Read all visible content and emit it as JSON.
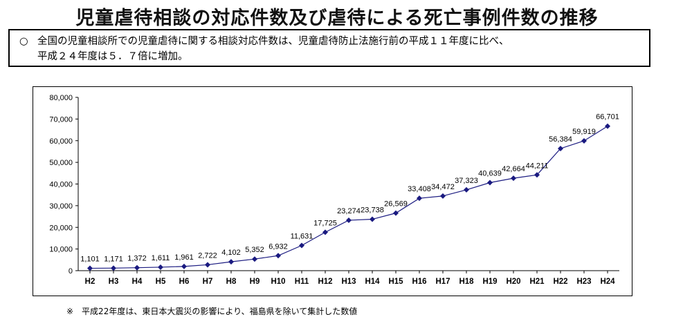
{
  "title": "児童虐待相談の対応件数及び虐待による死亡事例件数の推移",
  "summary": {
    "bullet": "○",
    "line1": "全国の児童相談所での児童虐待に関する相談対応件数は、児童虐待防止法施行前の平成１１年度に比べ、",
    "line2": "平成２４年度は５．７倍に増加。"
  },
  "footnote": "※　平成22年度は、東日本大震災の影響により、福島県を除いて集計した数値",
  "colors": {
    "series": "#1a1a80"
  },
  "chart_data": {
    "type": "line",
    "categories": [
      "H2",
      "H3",
      "H4",
      "H5",
      "H6",
      "H7",
      "H8",
      "H9",
      "H10",
      "H11",
      "H12",
      "H13",
      "H14",
      "H15",
      "H16",
      "H17",
      "H18",
      "H19",
      "H20",
      "H21",
      "H22",
      "H23",
      "H24"
    ],
    "values": [
      1101,
      1171,
      1372,
      1611,
      1961,
      2722,
      4102,
      5352,
      6932,
      11631,
      17725,
      23274,
      23738,
      26569,
      33408,
      34472,
      37323,
      40639,
      42664,
      44211,
      56384,
      59919,
      66701
    ],
    "data_labels": [
      "1,101",
      "1,171",
      "1,372",
      "1,611",
      "1,961",
      "2,722",
      "4,102",
      "5,352",
      "6,932",
      "11,631",
      "17,725",
      "23,274",
      "23,738",
      "26,569",
      "33,408",
      "34,472",
      "37,323",
      "40,639",
      "42,664",
      "44,211",
      "56,384",
      "59,919",
      "66,701"
    ],
    "ylim": [
      0,
      80000
    ],
    "yticks": [
      0,
      10000,
      20000,
      30000,
      40000,
      50000,
      60000,
      70000,
      80000
    ],
    "ytick_labels": [
      "0",
      "10,000",
      "20,000",
      "30,000",
      "40,000",
      "50,000",
      "60,000",
      "70,000",
      "80,000"
    ],
    "grid": false,
    "marker": "diamond"
  }
}
